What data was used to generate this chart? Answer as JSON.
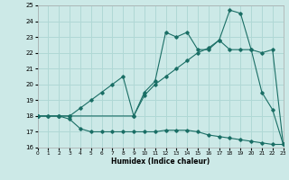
{
  "xlabel": "Humidex (Indice chaleur)",
  "xlim": [
    0,
    23
  ],
  "ylim": [
    16,
    25
  ],
  "yticks": [
    16,
    17,
    18,
    19,
    20,
    21,
    22,
    23,
    24,
    25
  ],
  "xticks": [
    0,
    1,
    2,
    3,
    4,
    5,
    6,
    7,
    8,
    9,
    10,
    11,
    12,
    13,
    14,
    15,
    16,
    17,
    18,
    19,
    20,
    21,
    22,
    23
  ],
  "bg_color": "#cce9e7",
  "line_color": "#1a6e65",
  "grid_color": "#b0d8d5",
  "line1_x": [
    0,
    1,
    2,
    3,
    4,
    5,
    6,
    7,
    8,
    9,
    10,
    11,
    12,
    13,
    14,
    15,
    16,
    17,
    18,
    19,
    20,
    21,
    22,
    23
  ],
  "line1_y": [
    18.0,
    18.0,
    18.0,
    17.8,
    17.2,
    17.0,
    17.0,
    17.0,
    17.0,
    17.0,
    17.0,
    17.0,
    17.1,
    17.1,
    17.1,
    17.0,
    16.8,
    16.7,
    16.6,
    16.5,
    16.4,
    16.3,
    16.2,
    16.2
  ],
  "line2_x": [
    0,
    2,
    3,
    9,
    10,
    11,
    12,
    13,
    14,
    15,
    16,
    17,
    18,
    19,
    20,
    21,
    22,
    23
  ],
  "line2_y": [
    18.0,
    18.0,
    18.0,
    18.0,
    19.5,
    20.2,
    23.3,
    23.0,
    23.3,
    22.2,
    22.2,
    22.8,
    24.7,
    24.5,
    22.2,
    22.0,
    22.2,
    16.2
  ],
  "line3_x": [
    0,
    1,
    2,
    3,
    4,
    5,
    6,
    7,
    8,
    9,
    10,
    11,
    12,
    13,
    14,
    15,
    16,
    17,
    18,
    19,
    20,
    21,
    22,
    23
  ],
  "line3_y": [
    18.0,
    18.0,
    18.0,
    18.0,
    18.5,
    19.0,
    19.5,
    20.0,
    20.5,
    18.0,
    19.3,
    20.0,
    20.5,
    21.0,
    21.5,
    22.0,
    22.3,
    22.8,
    22.2,
    22.2,
    22.2,
    19.5,
    18.4,
    16.2
  ]
}
